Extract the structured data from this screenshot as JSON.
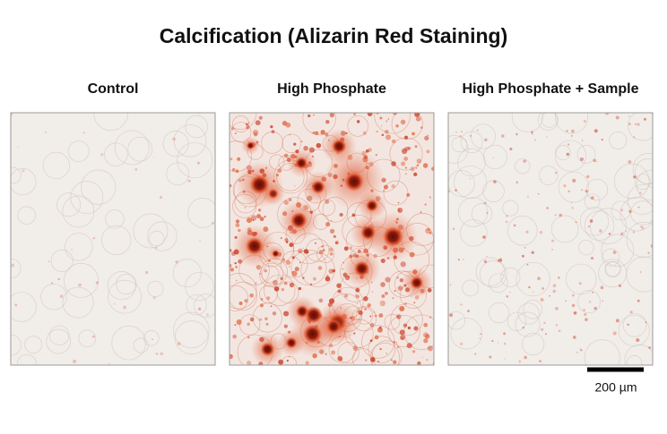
{
  "title": "Calcification (Alizarin Red Staining)",
  "panels": [
    {
      "label": "Control"
    },
    {
      "label": "High Phosphate"
    },
    {
      "label": "High Phosphate + Sample"
    }
  ],
  "scale_bar": {
    "label": "200 µm"
  }
}
